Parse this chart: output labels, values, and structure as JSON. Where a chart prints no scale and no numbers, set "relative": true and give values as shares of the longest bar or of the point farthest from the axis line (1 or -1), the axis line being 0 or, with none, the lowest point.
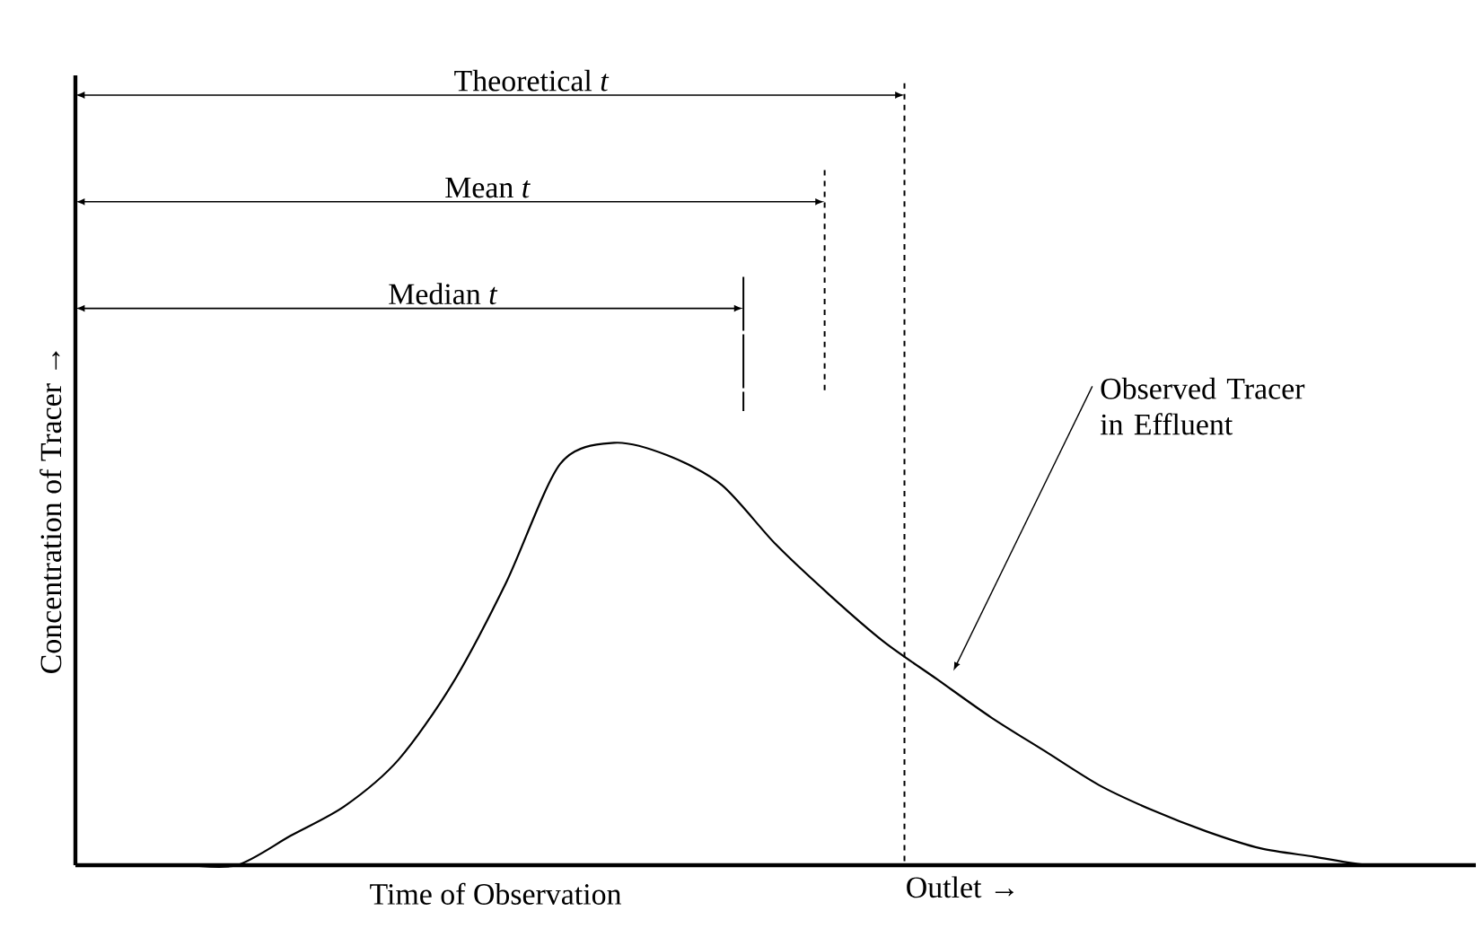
{
  "chart_data": {
    "type": "line",
    "relative": true,
    "xlabel": "Time of Observation",
    "ylabel": "Concentration of Tracer →",
    "categories": [
      null,
      null,
      null,
      null,
      null,
      null,
      null,
      null,
      null,
      null,
      null,
      null,
      null,
      null,
      null,
      null,
      null,
      null,
      null,
      null,
      null,
      null,
      null,
      null,
      null,
      null,
      null
    ],
    "series": [
      {
        "color": "#000000",
        "values": [
          0,
          0,
          0,
          0,
          0.07,
          0.14,
          0.25,
          0.43,
          0.67,
          0.95,
          1.0,
          0.97,
          0.9,
          0.76,
          0.64,
          0.53,
          0.44,
          0.35,
          0.27,
          0.19,
          0.13,
          0.08,
          0.04,
          0.02,
          0,
          0,
          0
        ]
      }
    ],
    "marker": "none",
    "line_style": "solid",
    "annotations": [
      "Theoretical *t*",
      "Mean *t*",
      "Median *t*",
      "Observed Tracer in Effluent",
      "Outlet →"
    ]
  }
}
